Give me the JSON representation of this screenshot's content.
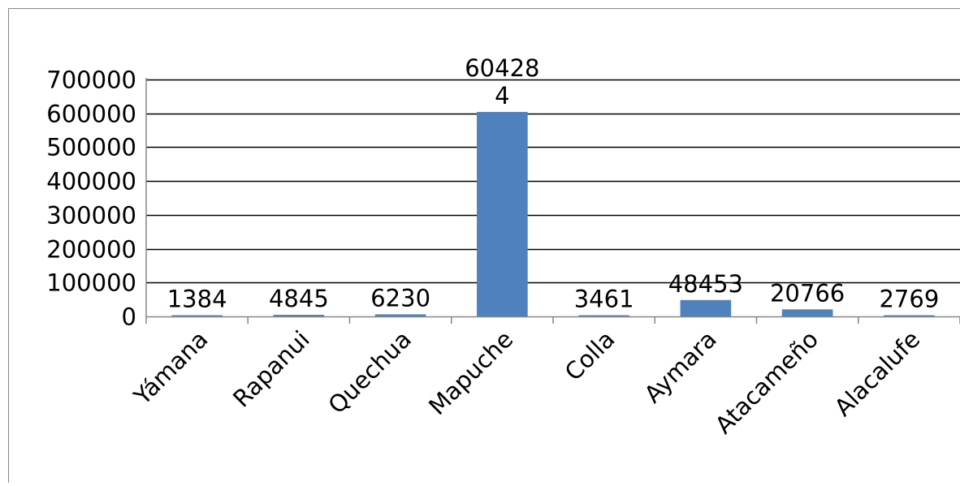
{
  "chart_data": {
    "type": "bar",
    "categories": [
      "Yámana",
      "Rapanui",
      "Quechua",
      "Mapuche",
      "Colla",
      "Aymara",
      "Atacameño",
      "Alacalufe"
    ],
    "values": [
      1384,
      4845,
      6230,
      604284,
      3461,
      48453,
      20766,
      2769
    ],
    "data_labels": [
      "1384",
      "4845",
      "6230",
      "60428\n4",
      "3461",
      "48453",
      "20766",
      "2769"
    ],
    "yticks": [
      "0",
      "100000",
      "200000",
      "300000",
      "400000",
      "500000",
      "600000",
      "700000"
    ],
    "ylim": [
      0,
      700000
    ],
    "grid": true,
    "legend": "none",
    "title": "",
    "xlabel": "",
    "ylabel": "",
    "bar_color": "#4f81bd",
    "grid_color": "#000000"
  }
}
